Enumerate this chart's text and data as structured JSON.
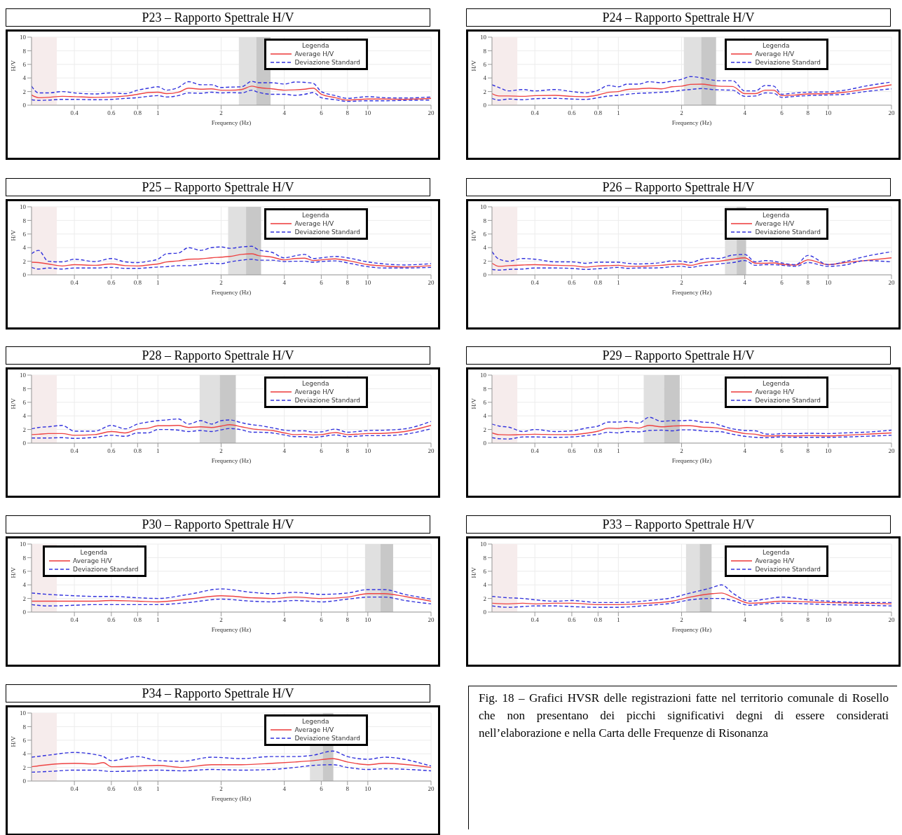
{
  "chart_data": [
    {
      "type": "line",
      "title": "P23 – Rapporto Spettrale H/V",
      "xlabel": "Frequency (Hz)",
      "ylabel": "H/V",
      "legend_title": "Legenda",
      "log": "x",
      "grid": true,
      "legend": "top right",
      "marker": "none",
      "xlim": [
        0.25,
        20
      ],
      "xticks": [
        0.4,
        0.6,
        0.8,
        1,
        2,
        4,
        6,
        8,
        10,
        20
      ],
      "ylim": [
        0,
        10
      ],
      "yticks": [
        0,
        2,
        4,
        6,
        8,
        10
      ],
      "x": [
        0.25,
        0.27,
        0.3,
        0.35,
        0.4,
        0.5,
        0.6,
        0.7,
        0.8,
        0.9,
        1,
        1.1,
        1.25,
        1.4,
        1.6,
        1.8,
        2,
        2.2,
        2.5,
        2.8,
        3,
        3.5,
        4,
        4.5,
        5,
        5.5,
        6,
        7,
        8,
        10,
        12,
        15,
        20
      ],
      "bands": [
        {
          "axis": "x",
          "from": 0.25,
          "to": 0.33,
          "color": "#f6ecec"
        },
        {
          "axis": "x",
          "from": 2.43,
          "to": 2.94,
          "color": "#e0e0e0"
        },
        {
          "axis": "x",
          "from": 2.94,
          "to": 3.44,
          "color": "#c8c8c8"
        }
      ],
      "series": [
        {
          "name": "Average H/V",
          "color": "#ee4444",
          "line_style": "solid",
          "values": [
            1.5,
            1.1,
            1.15,
            1.3,
            1.25,
            1.15,
            1.2,
            1.35,
            1.6,
            1.85,
            1.9,
            1.7,
            1.9,
            2.5,
            2.35,
            2.4,
            2.2,
            2.2,
            2.3,
            2.8,
            2.6,
            2.4,
            2.2,
            2.25,
            2.35,
            2.5,
            1.6,
            1.1,
            0.75,
            0.9,
            0.9,
            0.85,
            1.0
          ]
        },
        {
          "name": "Deviazione Standard",
          "color": "#3333dd",
          "line_style": "dashed",
          "values": [
            2.8,
            1.8,
            1.8,
            2.0,
            1.8,
            1.65,
            1.8,
            1.7,
            2.2,
            2.5,
            2.7,
            2.2,
            2.6,
            3.45,
            3.0,
            3.0,
            2.6,
            2.65,
            2.7,
            3.5,
            3.3,
            3.3,
            3.1,
            3.4,
            3.35,
            3.2,
            2.0,
            1.4,
            1.0,
            1.25,
            1.1,
            1.05,
            1.2
          ]
        },
        {
          "color": "#3333dd",
          "line_style": "dashed",
          "values": [
            0.8,
            0.7,
            0.75,
            0.85,
            0.85,
            0.8,
            0.85,
            1.0,
            1.1,
            1.3,
            1.4,
            1.2,
            1.4,
            1.8,
            1.75,
            1.9,
            1.8,
            1.85,
            1.8,
            2.2,
            1.9,
            1.6,
            1.6,
            1.45,
            1.6,
            1.85,
            1.1,
            0.8,
            0.55,
            0.65,
            0.65,
            0.7,
            0.75
          ]
        }
      ]
    },
    {
      "type": "line",
      "title": "P24 – Rapporto Spettrale H/V",
      "xlabel": "Frequency (Hz)",
      "ylabel": "H/V",
      "legend_title": "Legenda",
      "log": "x",
      "grid": true,
      "legend": "top right",
      "marker": "none",
      "xlim": [
        0.25,
        20
      ],
      "xticks": [
        0.4,
        0.6,
        0.8,
        1,
        2,
        4,
        6,
        8,
        10,
        20
      ],
      "ylim": [
        0,
        10
      ],
      "yticks": [
        0,
        2,
        4,
        6,
        8,
        10
      ],
      "x": [
        0.25,
        0.27,
        0.3,
        0.35,
        0.4,
        0.5,
        0.6,
        0.7,
        0.8,
        0.9,
        1,
        1.1,
        1.25,
        1.4,
        1.6,
        1.8,
        2,
        2.2,
        2.5,
        2.8,
        3,
        3.5,
        4,
        4.5,
        5,
        5.5,
        6,
        7,
        8,
        10,
        12,
        15,
        20
      ],
      "bands": [
        {
          "axis": "x",
          "from": 0.25,
          "to": 0.33,
          "color": "#f6ecec"
        },
        {
          "axis": "x",
          "from": 2.05,
          "to": 2.48,
          "color": "#e0e0e0"
        },
        {
          "axis": "x",
          "from": 2.48,
          "to": 2.92,
          "color": "#c8c8c8"
        }
      ],
      "series": [
        {
          "name": "Average H/V",
          "color": "#ee4444",
          "line_style": "solid",
          "values": [
            1.7,
            1.35,
            1.35,
            1.3,
            1.4,
            1.45,
            1.3,
            1.25,
            1.5,
            1.9,
            2.0,
            2.3,
            2.4,
            2.5,
            2.4,
            2.7,
            2.8,
            3.05,
            3.1,
            2.9,
            2.8,
            2.75,
            1.7,
            1.7,
            2.2,
            2.2,
            1.4,
            1.5,
            1.65,
            1.7,
            1.9,
            2.35,
            3.0
          ]
        },
        {
          "name": "Deviazione Standard",
          "color": "#3333dd",
          "line_style": "dashed",
          "values": [
            3.0,
            2.6,
            2.1,
            2.3,
            2.1,
            2.3,
            2.0,
            1.8,
            2.2,
            2.9,
            2.7,
            3.1,
            3.1,
            3.45,
            3.3,
            3.55,
            3.8,
            4.2,
            4.0,
            3.7,
            3.6,
            3.6,
            2.1,
            2.1,
            2.9,
            2.8,
            1.6,
            1.8,
            1.9,
            1.95,
            2.2,
            2.8,
            3.4
          ]
        },
        {
          "color": "#3333dd",
          "line_style": "dashed",
          "values": [
            1.0,
            0.75,
            0.9,
            0.8,
            0.95,
            1.0,
            0.9,
            0.85,
            1.1,
            1.35,
            1.45,
            1.6,
            1.75,
            1.8,
            1.9,
            2.0,
            2.2,
            2.3,
            2.45,
            2.3,
            2.25,
            2.2,
            1.3,
            1.35,
            1.8,
            1.75,
            1.15,
            1.3,
            1.4,
            1.5,
            1.6,
            2.0,
            2.4
          ]
        }
      ]
    },
    {
      "type": "line",
      "title": "P25 – Rapporto Spettrale H/V",
      "xlabel": "Frequency (Hz)",
      "ylabel": "H/V",
      "legend_title": "Legenda",
      "log": "x",
      "grid": true,
      "legend": "top right",
      "marker": "none",
      "xlim": [
        0.25,
        20
      ],
      "xticks": [
        0.4,
        0.6,
        0.8,
        1,
        2,
        4,
        6,
        8,
        10,
        20
      ],
      "ylim": [
        0,
        10
      ],
      "yticks": [
        0,
        2,
        4,
        6,
        8,
        10
      ],
      "x": [
        0.25,
        0.27,
        0.3,
        0.35,
        0.4,
        0.5,
        0.6,
        0.7,
        0.8,
        0.9,
        1,
        1.1,
        1.25,
        1.4,
        1.6,
        1.8,
        2,
        2.2,
        2.5,
        2.8,
        3,
        3.5,
        4,
        4.5,
        5,
        5.5,
        6,
        7,
        8,
        10,
        12,
        15,
        20
      ],
      "bands": [
        {
          "axis": "x",
          "from": 0.25,
          "to": 0.33,
          "color": "#f6ecec"
        },
        {
          "axis": "x",
          "from": 2.16,
          "to": 2.63,
          "color": "#e0e0e0"
        },
        {
          "axis": "x",
          "from": 2.63,
          "to": 3.1,
          "color": "#c8c8c8"
        }
      ],
      "series": [
        {
          "name": "Average H/V",
          "color": "#ee4444",
          "line_style": "solid",
          "values": [
            1.85,
            1.8,
            1.6,
            1.3,
            1.5,
            1.4,
            1.6,
            1.35,
            1.3,
            1.45,
            1.6,
            1.9,
            2.05,
            2.3,
            2.35,
            2.5,
            2.6,
            2.7,
            3.0,
            3.1,
            2.85,
            2.6,
            2.2,
            2.4,
            2.45,
            2.1,
            2.2,
            2.35,
            2.1,
            1.5,
            1.3,
            1.15,
            1.35
          ]
        },
        {
          "name": "Deviazione Standard",
          "color": "#3333dd",
          "line_style": "dashed",
          "values": [
            3.1,
            3.6,
            2.0,
            1.9,
            2.3,
            1.95,
            2.4,
            1.9,
            1.8,
            2.0,
            2.3,
            3.1,
            3.2,
            4.0,
            3.6,
            4.0,
            4.1,
            3.9,
            4.1,
            4.2,
            3.7,
            3.3,
            2.5,
            2.8,
            3.0,
            2.4,
            2.5,
            2.7,
            2.5,
            1.9,
            1.6,
            1.45,
            1.65
          ]
        },
        {
          "color": "#3333dd",
          "line_style": "dashed",
          "values": [
            1.1,
            0.85,
            1.0,
            0.85,
            1.0,
            1.0,
            1.1,
            0.95,
            0.95,
            1.05,
            1.15,
            1.2,
            1.35,
            1.35,
            1.55,
            1.7,
            1.65,
            1.9,
            2.15,
            2.3,
            2.15,
            2.15,
            1.95,
            2.0,
            2.0,
            1.85,
            1.95,
            2.05,
            1.75,
            1.2,
            1.0,
            1.0,
            1.1
          ]
        }
      ]
    },
    {
      "type": "line",
      "title": "P26 – Rapporto Spettrale H/V",
      "xlabel": "Frequency (Hz)",
      "ylabel": "H/V",
      "legend_title": "Legenda",
      "log": "x",
      "grid": true,
      "legend": "top right",
      "marker": "none",
      "xlim": [
        0.25,
        20
      ],
      "xticks": [
        0.4,
        0.6,
        0.8,
        1,
        2,
        4,
        6,
        8,
        10,
        20
      ],
      "ylim": [
        0,
        10
      ],
      "yticks": [
        0,
        2,
        4,
        6,
        8,
        10
      ],
      "x": [
        0.25,
        0.27,
        0.3,
        0.35,
        0.4,
        0.5,
        0.6,
        0.7,
        0.8,
        0.9,
        1,
        1.1,
        1.25,
        1.4,
        1.6,
        1.8,
        2,
        2.2,
        2.5,
        2.8,
        3,
        3.5,
        4,
        4.5,
        5,
        5.5,
        6,
        7,
        8,
        10,
        12,
        15,
        20
      ],
      "bands": [
        {
          "axis": "x",
          "from": 0.25,
          "to": 0.33,
          "color": "#f6ecec"
        },
        {
          "axis": "x",
          "from": 3.22,
          "to": 3.66,
          "color": "#e0e0e0"
        },
        {
          "axis": "x",
          "from": 3.66,
          "to": 4.06,
          "color": "#c8c8c8"
        }
      ],
      "series": [
        {
          "name": "Average H/V",
          "color": "#ee4444",
          "line_style": "solid",
          "values": [
            1.7,
            1.25,
            1.35,
            1.45,
            1.5,
            1.4,
            1.35,
            1.15,
            1.3,
            1.35,
            1.4,
            1.25,
            1.25,
            1.3,
            1.4,
            1.55,
            1.6,
            1.4,
            1.75,
            1.95,
            2.0,
            2.3,
            2.5,
            1.7,
            1.7,
            1.75,
            1.55,
            1.45,
            2.2,
            1.5,
            1.8,
            2.1,
            2.5
          ]
        },
        {
          "name": "Deviazione Standard",
          "color": "#3333dd",
          "line_style": "dashed",
          "values": [
            3.4,
            2.3,
            2.0,
            2.4,
            2.3,
            1.9,
            1.9,
            1.7,
            1.85,
            1.85,
            1.85,
            1.7,
            1.6,
            1.65,
            1.8,
            2.05,
            2.0,
            1.8,
            2.3,
            2.45,
            2.4,
            2.9,
            3.0,
            1.9,
            2.1,
            2.0,
            1.75,
            1.5,
            2.85,
            1.5,
            1.95,
            2.7,
            3.4
          ]
        },
        {
          "color": "#3333dd",
          "line_style": "dashed",
          "values": [
            0.8,
            0.7,
            0.8,
            0.85,
            1.0,
            1.0,
            0.95,
            0.8,
            0.9,
            1.0,
            1.1,
            0.95,
            1.0,
            1.0,
            1.05,
            1.2,
            1.25,
            1.1,
            1.35,
            1.45,
            1.6,
            1.8,
            2.1,
            1.4,
            1.5,
            1.5,
            1.4,
            1.25,
            1.8,
            1.25,
            1.45,
            2.1,
            1.9
          ]
        }
      ]
    },
    {
      "type": "line",
      "title": "P28 – Rapporto Spettrale H/V",
      "xlabel": "Frequency (Hz)",
      "ylabel": "H/V",
      "legend_title": "Legenda",
      "log": "x",
      "grid": true,
      "legend": "top right",
      "marker": "none",
      "xlim": [
        0.25,
        20
      ],
      "xticks": [
        0.4,
        0.6,
        0.8,
        1,
        2,
        4,
        6,
        8,
        10,
        20
      ],
      "ylim": [
        0,
        10
      ],
      "yticks": [
        0,
        2,
        4,
        6,
        8,
        10
      ],
      "x": [
        0.25,
        0.27,
        0.3,
        0.35,
        0.4,
        0.5,
        0.6,
        0.7,
        0.8,
        0.9,
        1,
        1.1,
        1.25,
        1.4,
        1.6,
        1.8,
        2,
        2.2,
        2.5,
        2.8,
        3,
        3.5,
        4,
        4.5,
        5,
        5.5,
        6,
        7,
        8,
        10,
        12,
        15,
        20
      ],
      "bands": [
        {
          "axis": "x",
          "from": 0.25,
          "to": 0.33,
          "color": "#f6ecec"
        },
        {
          "axis": "x",
          "from": 1.58,
          "to": 1.97,
          "color": "#e0e0e0"
        },
        {
          "axis": "x",
          "from": 1.97,
          "to": 2.35,
          "color": "#c8c8c8"
        }
      ],
      "series": [
        {
          "name": "Average H/V",
          "color": "#ee4444",
          "line_style": "solid",
          "values": [
            1.25,
            1.3,
            1.4,
            1.4,
            1.15,
            1.25,
            1.7,
            1.5,
            2.05,
            2.2,
            2.55,
            2.55,
            2.6,
            2.3,
            2.4,
            2.3,
            2.5,
            2.7,
            2.4,
            2.1,
            2.0,
            1.85,
            1.5,
            1.25,
            1.3,
            1.2,
            1.25,
            1.55,
            1.25,
            1.4,
            1.45,
            1.7,
            2.6
          ]
        },
        {
          "name": "Deviazione Standard",
          "color": "#3333dd",
          "line_style": "dashed",
          "values": [
            2.1,
            2.3,
            2.4,
            2.6,
            1.75,
            1.75,
            2.6,
            2.1,
            2.8,
            3.1,
            3.3,
            3.4,
            3.55,
            2.8,
            3.3,
            2.8,
            3.3,
            3.4,
            3.0,
            2.7,
            2.6,
            2.25,
            1.9,
            1.8,
            1.8,
            1.6,
            1.65,
            2.05,
            1.6,
            1.85,
            1.9,
            2.1,
            3.2
          ]
        },
        {
          "color": "#3333dd",
          "line_style": "dashed",
          "values": [
            0.75,
            0.75,
            0.75,
            0.8,
            0.7,
            0.85,
            1.15,
            1.0,
            1.5,
            1.5,
            2.0,
            2.0,
            1.9,
            1.7,
            1.85,
            1.7,
            1.95,
            2.15,
            1.95,
            1.6,
            1.6,
            1.5,
            1.2,
            0.95,
            0.95,
            0.85,
            0.95,
            1.2,
            0.95,
            1.1,
            1.1,
            1.3,
            2.1
          ]
        }
      ]
    },
    {
      "type": "line",
      "title": "P29 – Rapporto Spettrale H/V",
      "xlabel": "Frequency (Hz)",
      "ylabel": "H/V",
      "legend_title": "Legenda",
      "log": "x",
      "grid": true,
      "legend": "top right",
      "marker": "none",
      "xlim": [
        0.25,
        20
      ],
      "xticks": [
        0.4,
        0.6,
        0.8,
        1,
        2,
        4,
        6,
        8,
        10,
        20
      ],
      "ylim": [
        0,
        10
      ],
      "yticks": [
        0,
        2,
        4,
        6,
        8,
        10
      ],
      "x": [
        0.25,
        0.27,
        0.3,
        0.35,
        0.4,
        0.5,
        0.6,
        0.7,
        0.8,
        0.9,
        1,
        1.1,
        1.25,
        1.4,
        1.6,
        1.8,
        2,
        2.2,
        2.5,
        2.8,
        3,
        3.5,
        4,
        4.5,
        5,
        5.5,
        6,
        7,
        8,
        10,
        12,
        15,
        20
      ],
      "bands": [
        {
          "axis": "x",
          "from": 0.25,
          "to": 0.33,
          "color": "#f6ecec"
        },
        {
          "axis": "x",
          "from": 1.32,
          "to": 1.65,
          "color": "#e0e0e0"
        },
        {
          "axis": "x",
          "from": 1.65,
          "to": 1.96,
          "color": "#c8c8c8"
        }
      ],
      "series": [
        {
          "name": "Average H/V",
          "color": "#ee4444",
          "line_style": "solid",
          "values": [
            1.5,
            1.25,
            1.2,
            1.25,
            1.3,
            1.25,
            1.25,
            1.45,
            1.75,
            2.2,
            2.15,
            2.3,
            2.2,
            2.6,
            2.4,
            2.5,
            2.55,
            2.55,
            2.35,
            2.3,
            2.2,
            1.75,
            1.4,
            1.3,
            1.05,
            1.05,
            1.1,
            1.05,
            1.1,
            1.05,
            1.15,
            1.3,
            1.5
          ]
        },
        {
          "name": "Deviazione Standard",
          "color": "#3333dd",
          "line_style": "dashed",
          "values": [
            2.8,
            2.5,
            2.35,
            1.7,
            2.0,
            1.7,
            1.8,
            2.2,
            2.5,
            3.1,
            3.1,
            3.2,
            2.95,
            3.8,
            3.2,
            3.3,
            3.3,
            3.35,
            3.1,
            3.0,
            2.7,
            2.1,
            1.85,
            1.8,
            1.35,
            1.3,
            1.4,
            1.4,
            1.45,
            1.4,
            1.5,
            1.6,
            1.9
          ]
        },
        {
          "color": "#3333dd",
          "line_style": "dashed",
          "values": [
            0.8,
            0.65,
            0.6,
            0.9,
            0.9,
            0.85,
            0.9,
            1.1,
            1.3,
            1.6,
            1.5,
            1.7,
            1.65,
            1.85,
            1.9,
            1.8,
            1.95,
            1.95,
            1.8,
            1.7,
            1.7,
            1.3,
            1.0,
            0.85,
            0.8,
            0.85,
            0.9,
            0.85,
            0.85,
            0.85,
            0.9,
            1.0,
            1.15
          ]
        }
      ]
    },
    {
      "type": "line",
      "title": "P30 – Rapporto Spettrale H/V",
      "xlabel": "Frequency (Hz)",
      "ylabel": "H/V",
      "legend_title": "Legenda",
      "log": "x",
      "grid": true,
      "legend": "top left",
      "marker": "none",
      "xlim": [
        0.25,
        20
      ],
      "xticks": [
        0.4,
        0.6,
        0.8,
        1,
        2,
        4,
        6,
        8,
        10,
        20
      ],
      "ylim": [
        0,
        10
      ],
      "yticks": [
        0,
        2,
        4,
        6,
        8,
        10
      ],
      "x": [
        0.25,
        0.3,
        0.4,
        0.5,
        0.6,
        0.8,
        1,
        1.4,
        2,
        2.8,
        3.5,
        4.5,
        6,
        8,
        10,
        12,
        15,
        20
      ],
      "bands": [
        {
          "axis": "x",
          "from": 0.25,
          "to": 0.33,
          "color": "#f6ecec"
        },
        {
          "axis": "x",
          "from": 9.7,
          "to": 11.5,
          "color": "#e0e0e0"
        },
        {
          "axis": "x",
          "from": 11.5,
          "to": 13.2,
          "color": "#c8c8c8"
        }
      ],
      "series": [
        {
          "name": "Average H/V",
          "color": "#ee4444",
          "line_style": "solid",
          "values": [
            1.6,
            1.6,
            1.6,
            1.6,
            1.7,
            1.6,
            1.5,
            1.9,
            2.4,
            2.1,
            2.0,
            2.2,
            2.0,
            2.2,
            2.7,
            2.7,
            2.3,
            1.6
          ]
        },
        {
          "name": "Deviazione Standard",
          "color": "#3333dd",
          "line_style": "dashed",
          "values": [
            2.8,
            2.6,
            2.4,
            2.3,
            2.3,
            2.1,
            2.0,
            2.6,
            3.4,
            2.9,
            2.7,
            2.9,
            2.6,
            2.8,
            3.3,
            3.3,
            2.6,
            1.9
          ]
        },
        {
          "color": "#3333dd",
          "line_style": "dashed",
          "values": [
            1.1,
            0.9,
            1.0,
            1.1,
            1.1,
            1.1,
            1.1,
            1.4,
            1.9,
            1.6,
            1.5,
            1.7,
            1.5,
            1.9,
            2.2,
            2.2,
            1.7,
            1.2
          ]
        }
      ]
    },
    {
      "type": "line",
      "title": "P33 – Rapporto Spettrale H/V",
      "xlabel": "Frequency (Hz)",
      "ylabel": "H/V",
      "legend_title": "Legenda",
      "log": "x",
      "grid": true,
      "legend": "top right",
      "marker": "none",
      "xlim": [
        0.25,
        20
      ],
      "xticks": [
        0.4,
        0.6,
        0.8,
        1,
        2,
        4,
        6,
        8,
        10,
        20
      ],
      "ylim": [
        0,
        10
      ],
      "yticks": [
        0,
        2,
        4,
        6,
        8,
        10
      ],
      "x": [
        0.25,
        0.3,
        0.35,
        0.4,
        0.5,
        0.6,
        0.8,
        1,
        1.4,
        1.8,
        2.2,
        2.8,
        3.1,
        3.5,
        4.2,
        5,
        6,
        8,
        10,
        15,
        20
      ],
      "bands": [
        {
          "axis": "x",
          "from": 0.25,
          "to": 0.33,
          "color": "#f6ecec"
        },
        {
          "axis": "x",
          "from": 2.1,
          "to": 2.44,
          "color": "#e0e0e0"
        },
        {
          "axis": "x",
          "from": 2.44,
          "to": 2.78,
          "color": "#c8c8c8"
        }
      ],
      "series": [
        {
          "name": "Average H/V",
          "color": "#ee4444",
          "line_style": "solid",
          "values": [
            1.3,
            1.2,
            1.3,
            1.2,
            1.3,
            1.3,
            1.1,
            1.1,
            1.3,
            1.6,
            2.2,
            2.7,
            2.8,
            2.2,
            1.3,
            1.4,
            1.6,
            1.5,
            1.4,
            1.3,
            1.2
          ]
        },
        {
          "name": "Deviazione Standard",
          "color": "#3333dd",
          "line_style": "dashed",
          "values": [
            2.3,
            2.1,
            2.0,
            1.8,
            1.6,
            1.7,
            1.4,
            1.4,
            1.7,
            2.1,
            2.8,
            3.6,
            4.0,
            2.8,
            1.6,
            1.9,
            2.2,
            1.8,
            1.6,
            1.4,
            1.4
          ]
        },
        {
          "color": "#3333dd",
          "line_style": "dashed",
          "values": [
            0.9,
            0.7,
            0.8,
            0.9,
            0.9,
            0.8,
            0.7,
            0.7,
            1.0,
            1.3,
            1.8,
            2.0,
            2.0,
            1.7,
            1.0,
            1.2,
            1.3,
            1.2,
            1.1,
            1.0,
            0.9
          ]
        }
      ]
    },
    {
      "type": "line",
      "title": "P34 – Rapporto Spettrale H/V",
      "xlabel": "Frequency (Hz)",
      "ylabel": "H/V",
      "legend_title": "Legenda",
      "log": "x",
      "grid": true,
      "legend": "top right",
      "marker": "none",
      "xlim": [
        0.25,
        20
      ],
      "xticks": [
        0.4,
        0.6,
        0.8,
        1,
        2,
        4,
        6,
        8,
        10,
        20
      ],
      "ylim": [
        0,
        10
      ],
      "yticks": [
        0,
        2,
        4,
        6,
        8,
        10
      ],
      "x": [
        0.25,
        0.3,
        0.4,
        0.5,
        0.55,
        0.6,
        0.8,
        1,
        1.3,
        1.8,
        2.5,
        3.5,
        4.5,
        5.5,
        6.8,
        8,
        10,
        12,
        20
      ],
      "bands": [
        {
          "axis": "x",
          "from": 0.25,
          "to": 0.33,
          "color": "#f6ecec"
        },
        {
          "axis": "x",
          "from": 5.3,
          "to": 6.1,
          "color": "#e0e0e0"
        },
        {
          "axis": "x",
          "from": 6.1,
          "to": 6.85,
          "color": "#c8c8c8"
        }
      ],
      "annotations": [
        "Fig. 18 – Grafici HVSR delle registrazioni fatte nel territorio comunale di Rosello che non presentano dei picchi significativi degni di essere considerati nell’elaborazione e nella Carta delle Frequenze di Risonanza"
      ],
      "series": [
        {
          "name": "Average H/V",
          "color": "#ee4444",
          "line_style": "solid",
          "values": [
            2.1,
            2.4,
            2.6,
            2.5,
            2.7,
            2.1,
            2.2,
            2.3,
            2.0,
            2.4,
            2.4,
            2.6,
            2.8,
            3.0,
            3.3,
            2.8,
            2.4,
            2.6,
            2.0
          ]
        },
        {
          "name": "Deviazione Standard",
          "color": "#3333dd",
          "line_style": "dashed",
          "values": [
            3.5,
            3.8,
            4.2,
            3.9,
            3.6,
            3.0,
            3.6,
            3.0,
            2.9,
            3.5,
            3.3,
            3.6,
            3.6,
            3.8,
            4.4,
            3.6,
            3.2,
            3.5,
            2.2
          ]
        },
        {
          "color": "#3333dd",
          "line_style": "dashed",
          "values": [
            1.3,
            1.4,
            1.6,
            1.6,
            1.5,
            1.4,
            1.5,
            1.6,
            1.5,
            1.7,
            1.6,
            1.7,
            2.0,
            2.3,
            2.4,
            2.0,
            1.7,
            1.8,
            1.5
          ]
        }
      ]
    }
  ]
}
